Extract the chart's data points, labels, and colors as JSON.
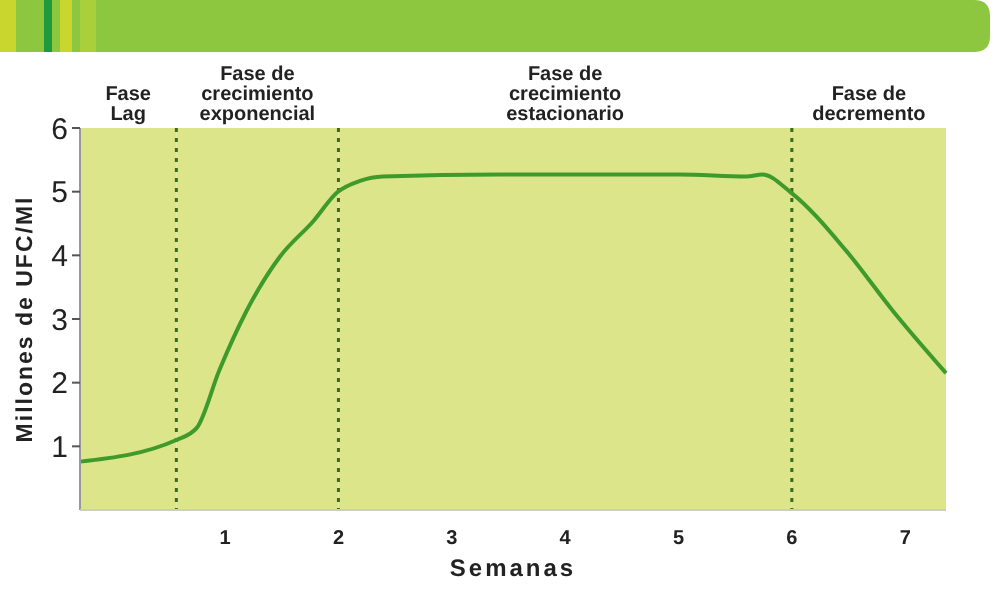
{
  "chart_data": {
    "type": "line",
    "xlabel": "Semanas",
    "ylabel": "Millones de UFC/Ml",
    "xlim": [
      -0.28,
      7.36
    ],
    "xticks": [
      1,
      2,
      3,
      4,
      5,
      6,
      7
    ],
    "ylim": [
      0,
      6
    ],
    "yticks": [
      1,
      2,
      3,
      4,
      5,
      6
    ],
    "series": [
      {
        "color": "#3f9a2c",
        "x": [
          -0.28,
          0.57,
          0.75,
          0.95,
          1.19,
          1.48,
          1.78,
          1.99,
          2.19,
          2.39,
          3.42,
          5.01,
          5.6,
          5.74,
          5.99,
          6.48,
          6.89,
          7.36
        ],
        "values": [
          0.76,
          1.1,
          1.29,
          2.2,
          3.13,
          3.97,
          4.54,
          4.99,
          5.17,
          5.24,
          5.27,
          5.27,
          5.24,
          5.27,
          4.99,
          4.07,
          3.13,
          2.15
        ]
      }
    ],
    "ref_lines": [
      {
        "axis": "x",
        "value": 0.57,
        "line_style": "dotted",
        "color": "#3a6b1e"
      },
      {
        "axis": "x",
        "value": 2,
        "line_style": "dotted",
        "color": "#3a6b1e"
      },
      {
        "axis": "x",
        "value": 6,
        "line_style": "dotted",
        "color": "#3a6b1e"
      }
    ],
    "bands": [
      {
        "axis": "x",
        "from": -0.28,
        "to": 0.57,
        "label": "Fase\nLag",
        "color": "#dde58a"
      },
      {
        "axis": "x",
        "from": 0.57,
        "to": 2,
        "label": "Fase de\ncrecimiento\nexponencial",
        "color": "#dde58a"
      },
      {
        "axis": "x",
        "from": 2,
        "to": 6,
        "label": "Fase de\ncrecimiento\nestacionario",
        "color": "#dde58a"
      },
      {
        "axis": "x",
        "from": 6,
        "to": 7.36,
        "label": "Fase de\ndecremento",
        "color": "#dde58a"
      }
    ],
    "grid": false,
    "marker": "none",
    "line_style": "solid"
  }
}
